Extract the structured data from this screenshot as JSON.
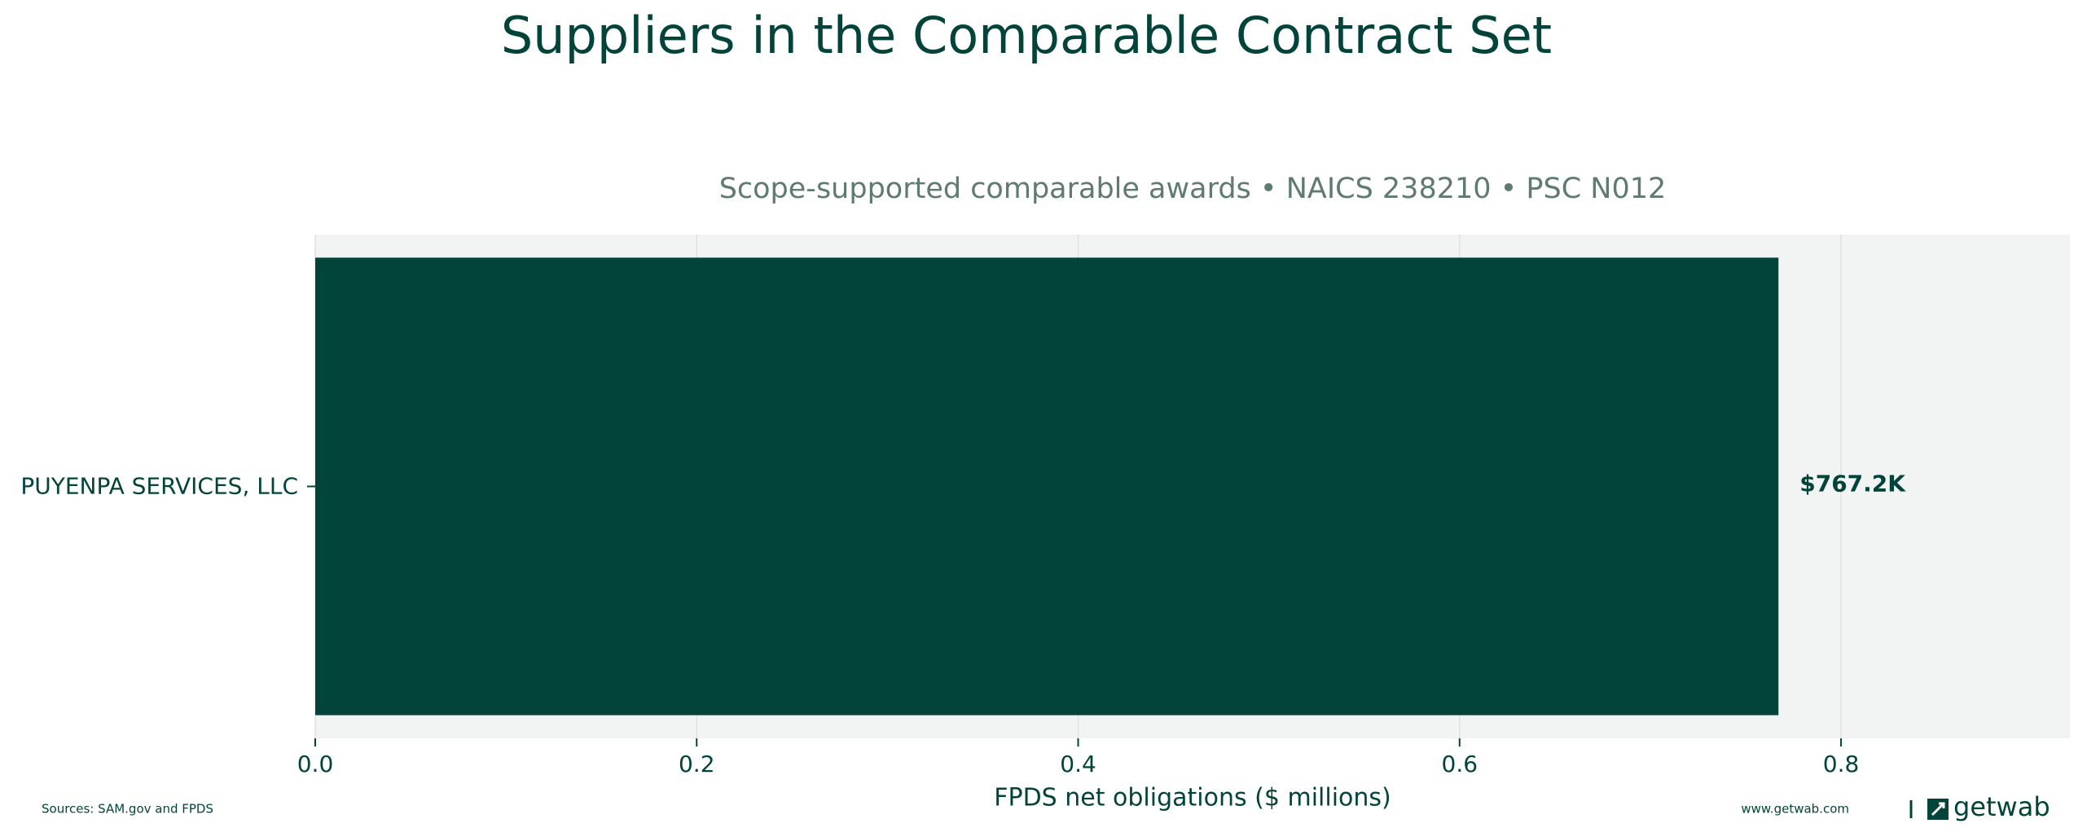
{
  "chart_data": {
    "type": "barh",
    "title": "Suppliers in the Comparable Contract Set",
    "subtitle": "Scope-supported comparable awards • NAICS 238210 • PSC N012",
    "x_label": "FPDS net obligations ($ millions)",
    "categories": [
      "PUYENPA SERVICES, LLC"
    ],
    "values": [
      0.7672
    ],
    "value_labels": [
      "$767.2K"
    ],
    "color": "#03443a",
    "xlim": [
      0,
      0.92
    ],
    "xticks": [
      {
        "value": 0,
        "label": "0.0"
      },
      0.2,
      0.4,
      0.6,
      0.8
    ],
    "grid": true,
    "source": "Sources: SAM.gov and FPDS",
    "website": "www.getwab.com",
    "brand": "getwab"
  }
}
